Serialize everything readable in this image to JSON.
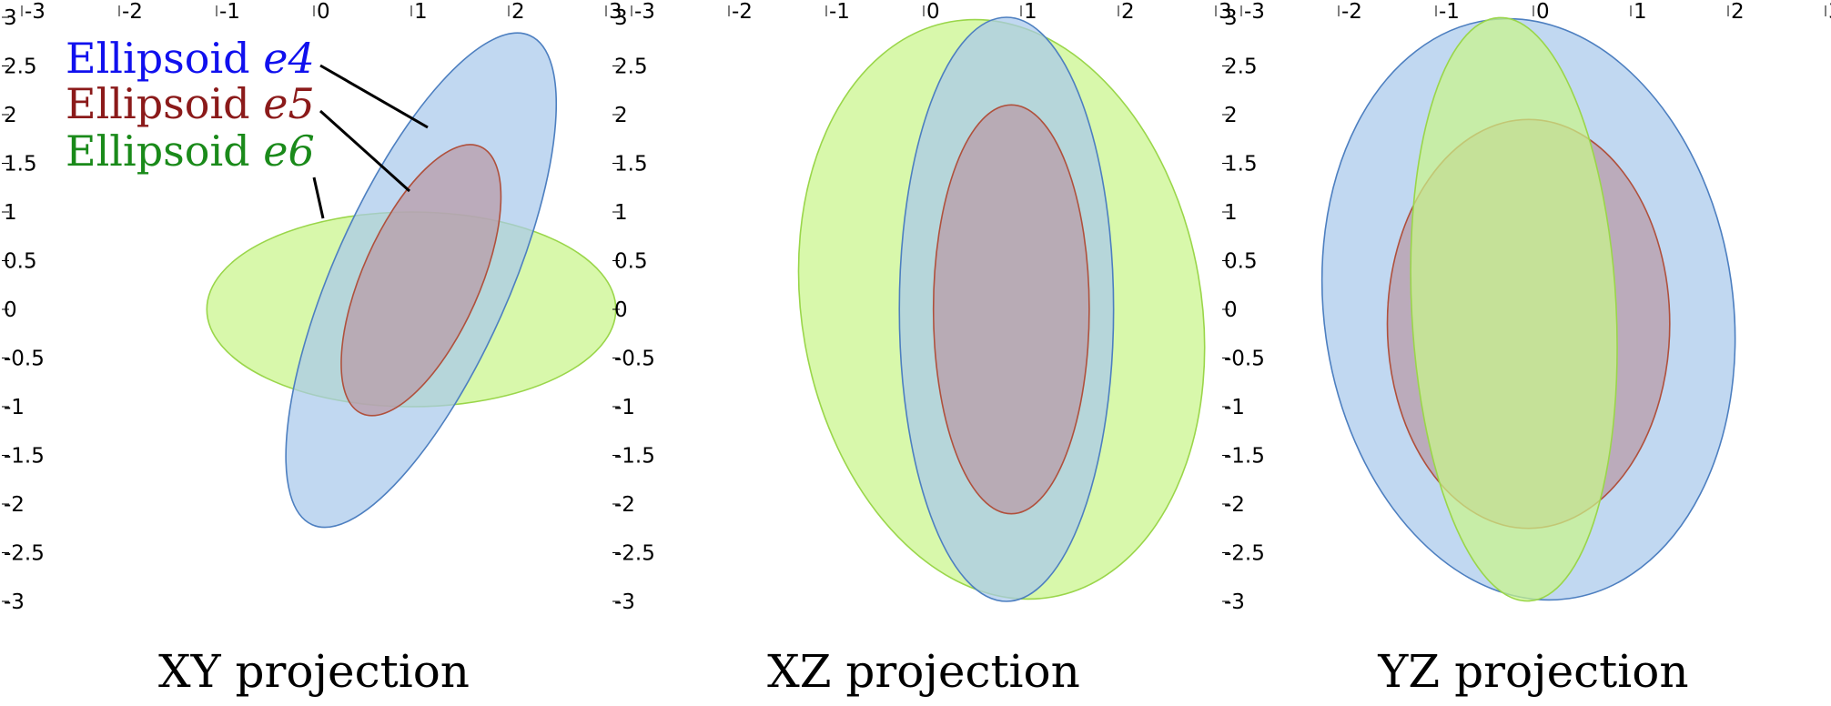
{
  "axis_ticks": [
    "-3",
    "-2.5",
    "-2",
    "-1.5",
    "-1",
    "-0.5",
    "0",
    "0.5",
    "1",
    "1.5",
    "2",
    "2.5",
    "3"
  ],
  "x_ticks": [
    "-3",
    "-2",
    "-1",
    "0",
    "1",
    "2",
    "3"
  ],
  "colors": {
    "e4_fill": "#a9c9ec",
    "e4_stroke": "#4d7fc0",
    "e5_fill": "#b89aa6",
    "e5_stroke": "#b0503c",
    "e6_fill": "#c9f58a",
    "e6_stroke": "#9ad64a",
    "e4_text": "#1010ee",
    "e5_text": "#8b1a1a",
    "e6_text": "#1a8a1a"
  },
  "legend": [
    {
      "prefix": "Ellipsoid ",
      "var": "e4",
      "color_key": "e4_text"
    },
    {
      "prefix": "Ellipsoid ",
      "var": "e5",
      "color_key": "e5_text"
    },
    {
      "prefix": "Ellipsoid ",
      "var": "e6",
      "color_key": "e6_text"
    }
  ],
  "panels": [
    {
      "caption": "XY projection",
      "ellipses": [
        {
          "id": "e6",
          "cx": 1.0,
          "cy": 0.0,
          "rx": 2.1,
          "ry": 1.0,
          "angle": 0
        },
        {
          "id": "e4",
          "cx": 1.1,
          "cy": 0.3,
          "rx": 0.9,
          "ry": 2.75,
          "angle": -24
        },
        {
          "id": "e5",
          "cx": 1.1,
          "cy": 0.3,
          "rx": 0.6,
          "ry": 1.5,
          "angle": -24
        }
      ]
    },
    {
      "caption": "XZ projection",
      "ellipses": [
        {
          "id": "e6",
          "cx": 0.8,
          "cy": 0.0,
          "rx": 2.05,
          "ry": 3.0,
          "angle": 10
        },
        {
          "id": "e4",
          "cx": 0.85,
          "cy": 0.0,
          "rx": 1.1,
          "ry": 3.0,
          "angle": 0
        },
        {
          "id": "e5",
          "cx": 0.9,
          "cy": 0.0,
          "rx": 0.8,
          "ry": 2.1,
          "angle": 0
        }
      ]
    },
    {
      "caption": "YZ projection",
      "ellipses": [
        {
          "id": "e4",
          "cx": -0.05,
          "cy": 0.0,
          "rx": 2.1,
          "ry": 3.0,
          "angle": 8
        },
        {
          "id": "e5",
          "cx": -0.05,
          "cy": -0.15,
          "rx": 1.45,
          "ry": 2.1,
          "angle": 0
        },
        {
          "id": "e6",
          "cx": -0.2,
          "cy": 0.0,
          "rx": 1.05,
          "ry": 3.0,
          "angle": 3
        }
      ]
    }
  ]
}
